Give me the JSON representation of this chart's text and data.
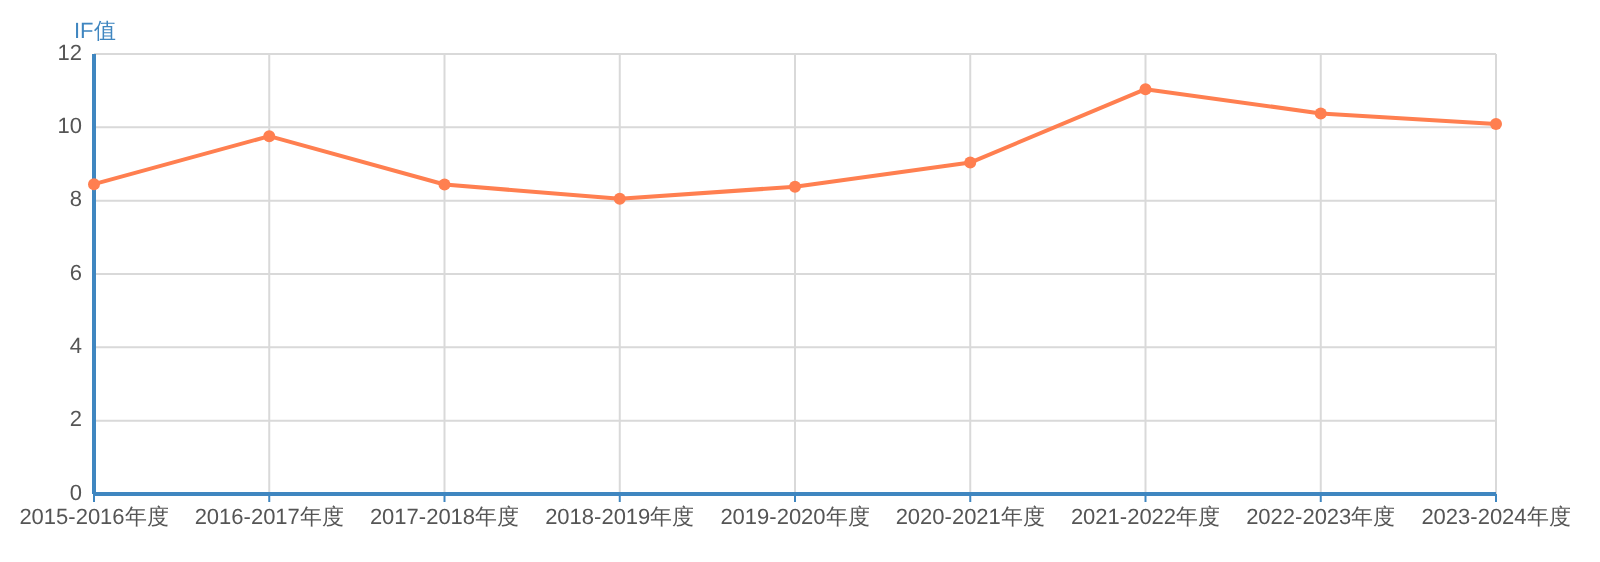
{
  "chart_data": {
    "type": "line",
    "ylabel": "IF值",
    "categories": [
      "2015-2016年度",
      "2016-2017年度",
      "2017-2018年度",
      "2018-2019年度",
      "2019-2020年度",
      "2020-2021年度",
      "2021-2022年度",
      "2022-2023年度",
      "2023-2024年度"
    ],
    "series": [
      {
        "color": "#ff7f50",
        "values": [
          8.45,
          9.76,
          8.44,
          8.05,
          8.38,
          9.04,
          11.04,
          10.38,
          10.09
        ]
      }
    ],
    "ylim": [
      0,
      12
    ],
    "yticks": [
      0,
      2,
      4,
      6,
      8,
      10,
      12
    ],
    "grid": true,
    "marker": "circle",
    "line_style": "solid"
  }
}
